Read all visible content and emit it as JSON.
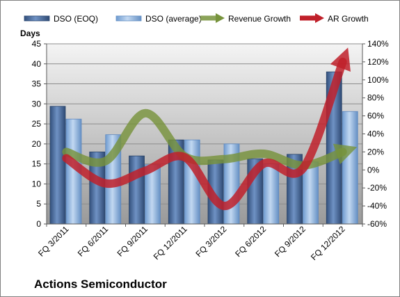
{
  "caption": "Actions Semiconductor",
  "chart_data": {
    "type": "bar",
    "categories": [
      "FQ 3/2011",
      "FQ 6/2011",
      "FQ 9/2011",
      "FQ 12/2011",
      "FQ 3/2012",
      "FQ 6/2012",
      "FQ 9/2012",
      "FQ 12/2012"
    ],
    "y_left": {
      "title": "Days",
      "ylim": [
        0,
        45
      ],
      "ticks": [
        "0",
        "5",
        "10",
        "15",
        "20",
        "25",
        "30",
        "35",
        "40",
        "45"
      ]
    },
    "y_right": {
      "ylim": [
        -60,
        140
      ],
      "ticks": [
        "-60%",
        "-40%",
        "-20%",
        "0%",
        "20%",
        "40%",
        "60%",
        "80%",
        "100%",
        "120%",
        "140%"
      ]
    },
    "series": [
      {
        "name": "DSO (EOQ)",
        "kind": "bar",
        "axis": "left",
        "color": "#4a6fa5",
        "values": [
          29.4,
          18.0,
          17.0,
          21.0,
          16.0,
          16.3,
          17.4,
          38.0
        ]
      },
      {
        "name": "DSO (average)",
        "kind": "bar",
        "axis": "left",
        "color": "#8db3e2",
        "values": [
          26.2,
          22.3,
          14.8,
          21.0,
          20.0,
          15.0,
          15.5,
          28.1
        ]
      },
      {
        "name": "Revenue Growth",
        "kind": "line",
        "axis": "right",
        "color": "#77933c",
        "values": [
          20,
          10,
          63,
          15,
          12,
          18,
          5,
          20
        ]
      },
      {
        "name": "AR Growth",
        "kind": "line",
        "axis": "right",
        "color": "#c0202a",
        "values": [
          13,
          -15,
          -1,
          14,
          -40,
          7,
          2,
          120
        ]
      }
    ],
    "grid": true,
    "legend": "top"
  }
}
